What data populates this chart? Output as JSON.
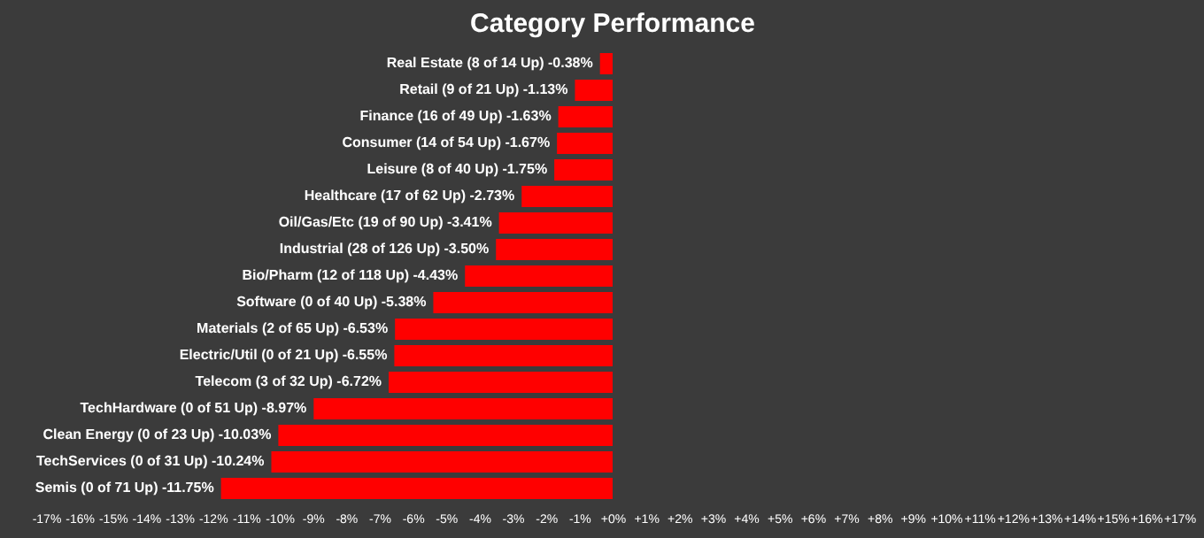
{
  "chart_data": {
    "type": "bar",
    "orientation": "horizontal",
    "title": "Category Performance",
    "categories": [
      "Real Estate (8 of 14 Up) -0.38%",
      "Retail (9 of 21 Up) -1.13%",
      "Finance (16 of 49 Up) -1.63%",
      "Consumer (14 of 54 Up) -1.67%",
      "Leisure (8 of 40 Up) -1.75%",
      "Healthcare (17 of 62 Up) -2.73%",
      "Oil/Gas/Etc (19 of 90 Up) -3.41%",
      "Industrial (28 of 126 Up) -3.50%",
      "Bio/Pharm (12 of 118 Up) -4.43%",
      "Software (0 of 40 Up) -5.38%",
      "Materials (2 of 65 Up) -6.53%",
      "Electric/Util (0 of 21 Up) -6.55%",
      "Telecom (3 of 32 Up) -6.72%",
      "TechHardware (0 of 51 Up) -8.97%",
      "Clean Energy (0 of 23 Up) -10.03%",
      "TechServices (0 of 31 Up) -10.24%",
      "Semis (0 of 71 Up) -11.75%"
    ],
    "values": [
      -0.38,
      -1.13,
      -1.63,
      -1.67,
      -1.75,
      -2.73,
      -3.41,
      -3.5,
      -4.43,
      -5.38,
      -6.53,
      -6.55,
      -6.72,
      -8.97,
      -10.03,
      -10.24,
      -11.75
    ],
    "color": "#ff0000",
    "xlim": [
      -17,
      17
    ],
    "xticks": [
      {
        "value": -17,
        "label": "-17%"
      },
      {
        "value": -16,
        "label": "-16%"
      },
      {
        "value": -15,
        "label": "-15%"
      },
      {
        "value": -14,
        "label": "-14%"
      },
      {
        "value": -13,
        "label": "-13%"
      },
      {
        "value": -12,
        "label": "-12%"
      },
      {
        "value": -11,
        "label": "-11%"
      },
      {
        "value": -10,
        "label": "-10%"
      },
      {
        "value": -9,
        "label": "-9%"
      },
      {
        "value": -8,
        "label": "-8%"
      },
      {
        "value": -7,
        "label": "-7%"
      },
      {
        "value": -6,
        "label": "-6%"
      },
      {
        "value": -5,
        "label": "-5%"
      },
      {
        "value": -4,
        "label": "-4%"
      },
      {
        "value": -3,
        "label": "-3%"
      },
      {
        "value": -2,
        "label": "-2%"
      },
      {
        "value": -1,
        "label": "-1%"
      },
      {
        "value": 0,
        "label": "+0%"
      },
      {
        "value": 1,
        "label": "+1%"
      },
      {
        "value": 2,
        "label": "+2%"
      },
      {
        "value": 3,
        "label": "+3%"
      },
      {
        "value": 4,
        "label": "+4%"
      },
      {
        "value": 5,
        "label": "+5%"
      },
      {
        "value": 6,
        "label": "+6%"
      },
      {
        "value": 7,
        "label": "+7%"
      },
      {
        "value": 8,
        "label": "+8%"
      },
      {
        "value": 9,
        "label": "+9%"
      },
      {
        "value": 10,
        "label": "+10%"
      },
      {
        "value": 11,
        "label": "+11%"
      },
      {
        "value": 12,
        "label": "+12%"
      },
      {
        "value": 13,
        "label": "+13%"
      },
      {
        "value": 14,
        "label": "+14%"
      },
      {
        "value": 15,
        "label": "+15%"
      },
      {
        "value": 16,
        "label": "+16%"
      },
      {
        "value": 17,
        "label": "+17%"
      }
    ],
    "tick_labels": "x",
    "grid": false
  }
}
